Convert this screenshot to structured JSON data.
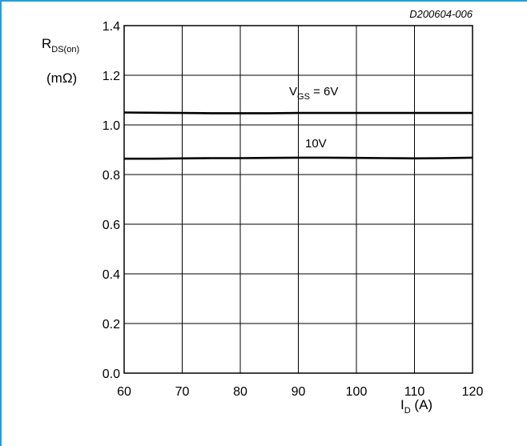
{
  "document_id": "D200604-006",
  "chart_data": {
    "type": "line",
    "title": "",
    "xlabel": {
      "main": "I",
      "sub": "D",
      "unit": " (A)"
    },
    "ylabel": {
      "main": "R",
      "sub": "DS(on)",
      "unit": "(mΩ)"
    },
    "xlim": [
      60,
      120
    ],
    "ylim": [
      0.0,
      1.4
    ],
    "xticks": [
      "60",
      "70",
      "80",
      "90",
      "100",
      "110",
      "120"
    ],
    "yticks": [
      "0.0",
      "0.2",
      "0.4",
      "0.6",
      "0.8",
      "1.0",
      "1.2",
      "1.4"
    ],
    "grid": true,
    "series": [
      {
        "name": "V_GS = 6V",
        "x": [
          60,
          65,
          70,
          75,
          80,
          85,
          90,
          95,
          100,
          105,
          110,
          115,
          120
        ],
        "values": [
          1.05,
          1.049,
          1.048,
          1.047,
          1.047,
          1.047,
          1.048,
          1.048,
          1.048,
          1.048,
          1.048,
          1.048,
          1.048
        ]
      },
      {
        "name": "10V",
        "x": [
          60,
          65,
          70,
          75,
          80,
          85,
          90,
          95,
          100,
          105,
          110,
          115,
          120
        ],
        "values": [
          0.864,
          0.864,
          0.865,
          0.866,
          0.866,
          0.867,
          0.868,
          0.868,
          0.867,
          0.866,
          0.865,
          0.866,
          0.868
        ]
      }
    ],
    "annotations": {
      "vgs_main": "V",
      "vgs_sub": "GS",
      "vgs_rest": " = 6V",
      "v10": "10V"
    }
  }
}
